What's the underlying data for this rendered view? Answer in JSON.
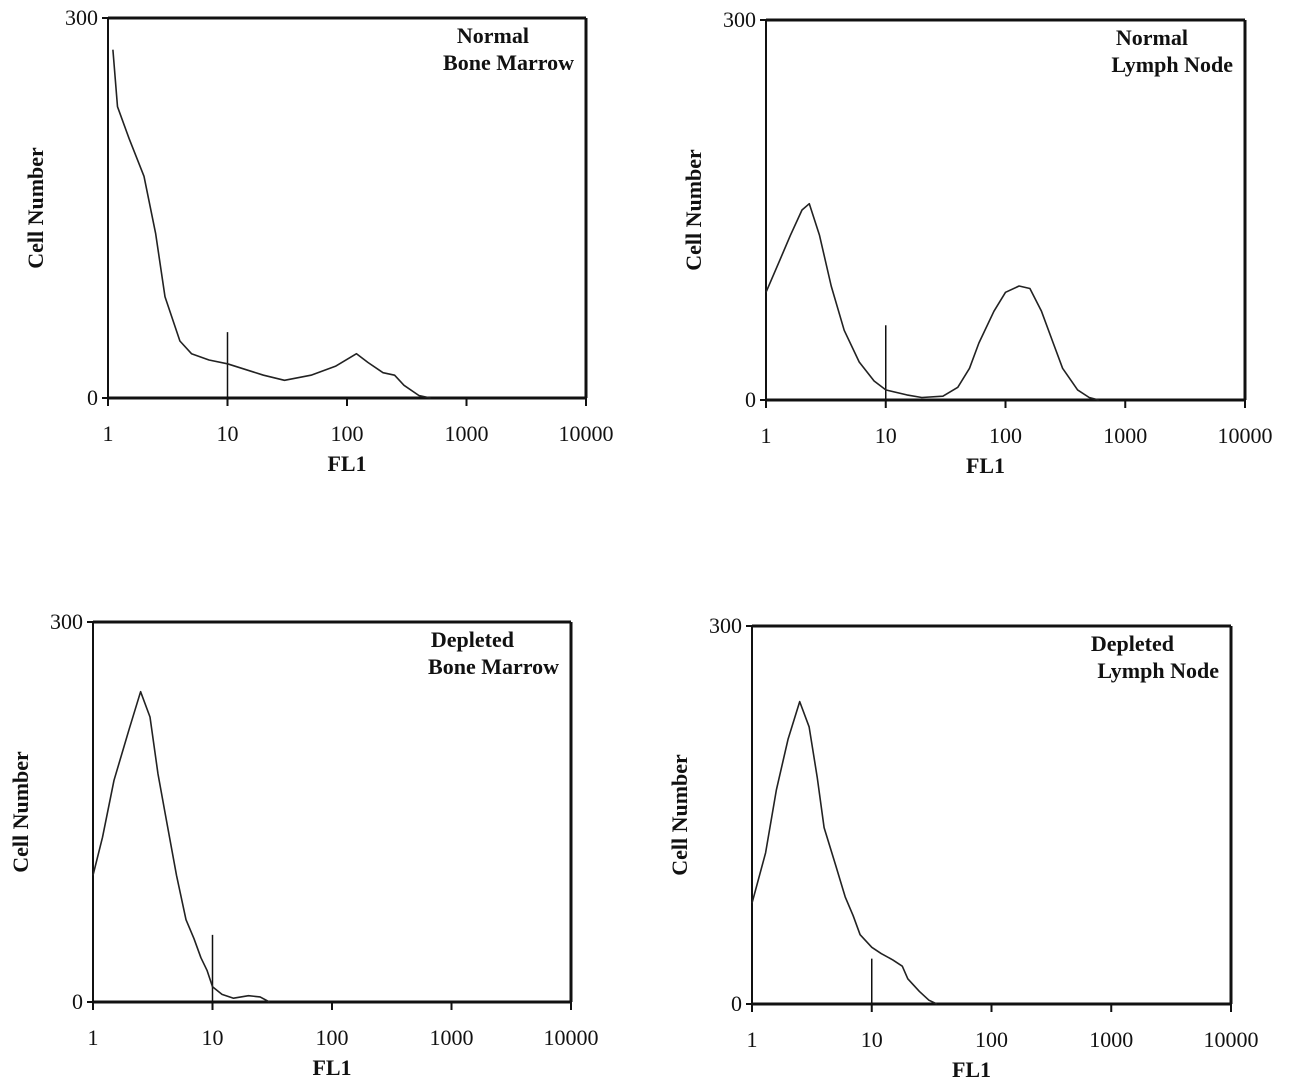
{
  "chart_data": [
    {
      "type": "line",
      "annotation_lines": [
        "Normal",
        "Bone Marrow"
      ],
      "x_label": "FL1",
      "y_label": "Cell Number",
      "log_x": true,
      "xlim": [
        1,
        10000
      ],
      "xticks": [
        1,
        10,
        100,
        1000,
        10000
      ],
      "ylim": [
        0,
        300
      ],
      "yticks": [
        0,
        300
      ],
      "color": "#222",
      "marker_x": 10,
      "marker_height": 52,
      "x": [
        1.1,
        1.2,
        1.5,
        2,
        2.5,
        3,
        4,
        5,
        7,
        10,
        20,
        30,
        50,
        80,
        120,
        150,
        200,
        250,
        300,
        400,
        500
      ],
      "values": [
        275,
        230,
        205,
        175,
        130,
        80,
        45,
        35,
        30,
        27,
        18,
        14,
        18,
        25,
        35,
        28,
        20,
        18,
        10,
        2,
        0
      ]
    },
    {
      "type": "line",
      "annotation_lines": [
        "Normal",
        "Lymph Node"
      ],
      "x_label": "FL1",
      "y_label": "Cell Number",
      "log_x": true,
      "xlim": [
        1,
        10000
      ],
      "xticks": [
        1,
        10,
        100,
        1000,
        10000
      ],
      "ylim": [
        0,
        300
      ],
      "yticks": [
        0,
        300
      ],
      "color": "#222",
      "marker_x": 10,
      "marker_height": 59,
      "x": [
        1,
        1.3,
        1.6,
        2,
        2.3,
        2.8,
        3.5,
        4.5,
        6,
        8,
        10,
        15,
        20,
        30,
        40,
        50,
        60,
        80,
        100,
        130,
        160,
        200,
        250,
        300,
        400,
        500,
        600
      ],
      "values": [
        85,
        110,
        130,
        150,
        155,
        130,
        90,
        55,
        30,
        15,
        8,
        4,
        2,
        3,
        10,
        25,
        45,
        70,
        85,
        90,
        88,
        70,
        45,
        25,
        8,
        2,
        0
      ]
    },
    {
      "type": "line",
      "annotation_lines": [
        "Depleted",
        "Bone Marrow"
      ],
      "x_label": "FL1",
      "y_label": "Cell Number",
      "log_x": true,
      "xlim": [
        1,
        10000
      ],
      "xticks": [
        1,
        10,
        100,
        1000,
        10000
      ],
      "ylim": [
        0,
        300
      ],
      "yticks": [
        0,
        300
      ],
      "color": "#222",
      "marker_x": 10,
      "marker_height": 53,
      "x": [
        1,
        1.2,
        1.5,
        2,
        2.5,
        3,
        3.5,
        4,
        5,
        6,
        7,
        8,
        9,
        10,
        12,
        15,
        20,
        25,
        30
      ],
      "values": [
        100,
        130,
        175,
        215,
        245,
        225,
        180,
        150,
        100,
        65,
        50,
        35,
        25,
        12,
        6,
        3,
        5,
        4,
        0
      ]
    },
    {
      "type": "line",
      "annotation_lines": [
        "Depleted",
        "Lymph Node"
      ],
      "x_label": "FL1",
      "y_label": "Cell Number",
      "log_x": true,
      "xlim": [
        1,
        10000
      ],
      "xticks": [
        1,
        10,
        100,
        1000,
        10000
      ],
      "ylim": [
        0,
        300
      ],
      "yticks": [
        0,
        300
      ],
      "color": "#222",
      "marker_x": 10,
      "marker_height": 36,
      "x": [
        1,
        1.3,
        1.6,
        2,
        2.5,
        3,
        3.5,
        4,
        5,
        6,
        7,
        8,
        10,
        12,
        15,
        18,
        20,
        25,
        30,
        35
      ],
      "values": [
        80,
        120,
        170,
        210,
        240,
        220,
        180,
        140,
        110,
        85,
        70,
        55,
        45,
        40,
        35,
        30,
        20,
        10,
        3,
        0
      ]
    }
  ]
}
